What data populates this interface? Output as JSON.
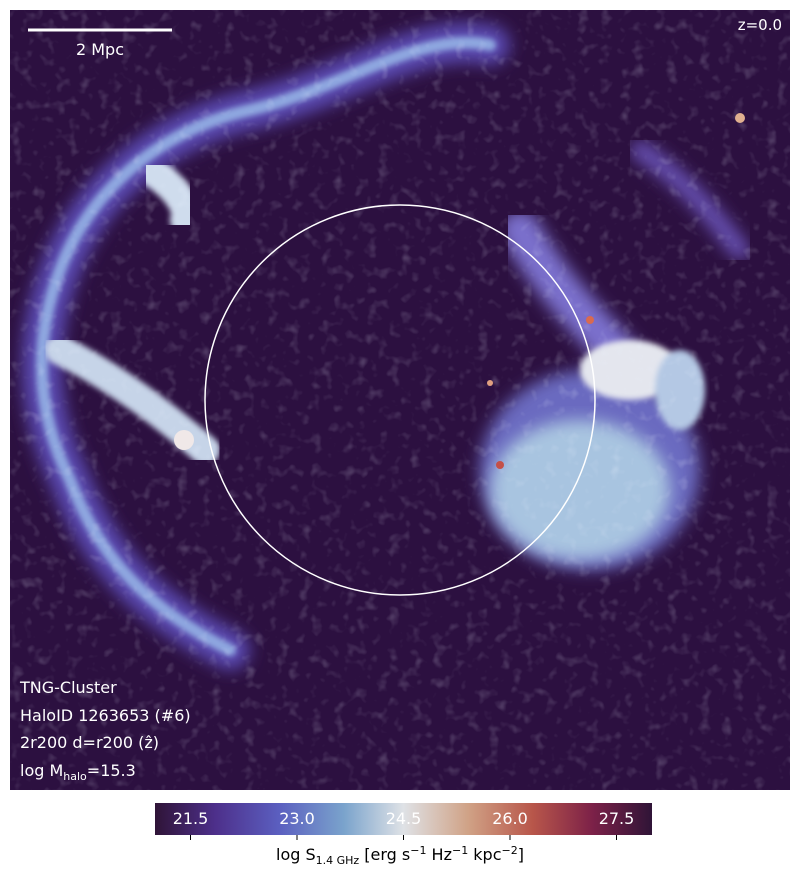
{
  "map": {
    "scale_bar": "2 Mpc",
    "redshift": "z=0.0",
    "annotations": [
      "TNG-Cluster",
      "HaloID 1263653 (#6)",
      "2r200 d=r200 (ẑ)"
    ],
    "mass_label": {
      "text": "log M",
      "sub": "halo",
      "rest": "=15.3"
    }
  },
  "colorbar": {
    "lim": [
      21,
      28
    ],
    "ticks": [
      21.5,
      {
        "value": 23,
        "label": "23.0"
      },
      24.5,
      {
        "value": 26,
        "label": "26.0"
      },
      27.5
    ],
    "label_parts": [
      "log S",
      "1.4 GHz",
      " [erg s",
      "−1",
      " Hz",
      "−1",
      " kpc",
      "−2",
      "]"
    ]
  }
}
